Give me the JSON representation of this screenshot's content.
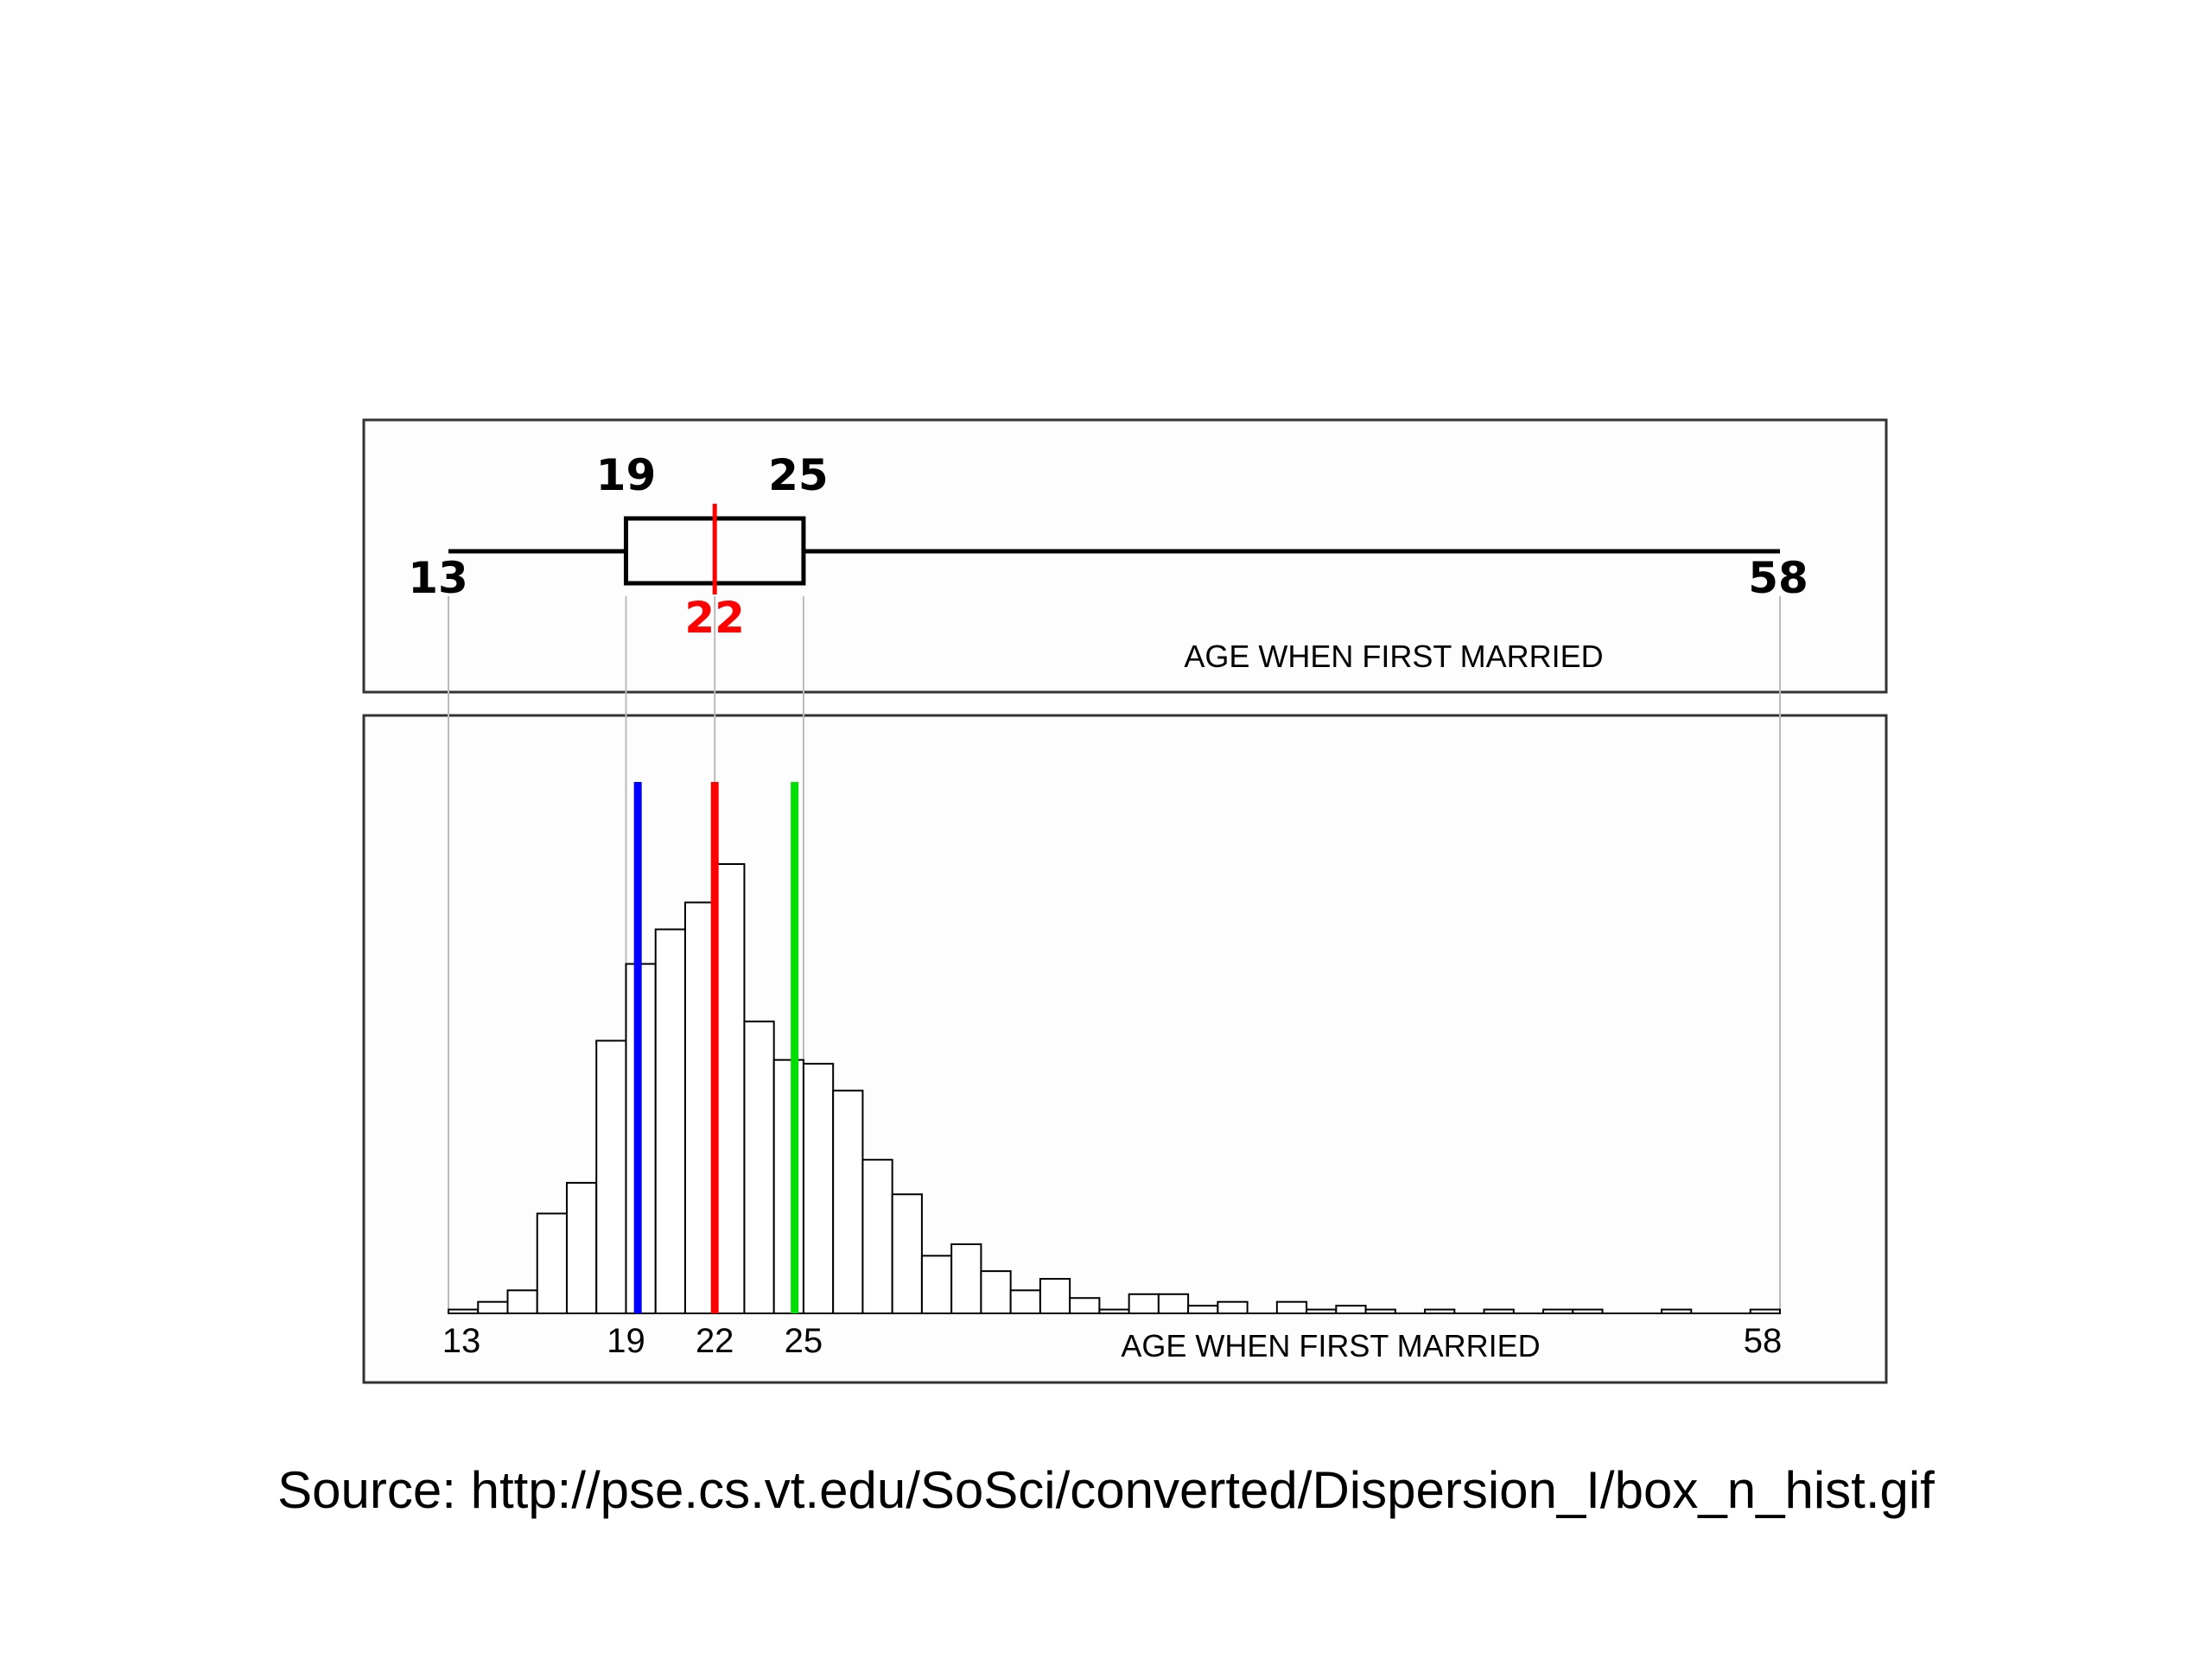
{
  "chart_data": [
    {
      "type": "box",
      "xlabel": "AGE WHEN FIRST MARRIED",
      "min": 13,
      "q1": 19,
      "median": 22,
      "q3": 25,
      "max": 58,
      "labels": {
        "min": "13",
        "q1": "19",
        "median": "22",
        "q3": "25",
        "max": "58"
      },
      "colors": {
        "median": "#ff0000",
        "box": "#000000"
      }
    },
    {
      "type": "bar",
      "xlabel": "AGE WHEN FIRST MARRIED",
      "bin_width": 1,
      "bins": [
        13,
        14,
        15,
        16,
        17,
        18,
        19,
        20,
        21,
        22,
        23,
        24,
        25,
        26,
        27,
        28,
        29,
        30,
        31,
        32,
        33,
        34,
        35,
        36,
        37,
        38,
        39,
        40,
        41,
        42,
        43,
        44,
        45,
        46,
        47,
        48,
        49,
        50,
        51,
        52,
        53,
        54,
        55,
        56,
        57
      ],
      "values": [
        1,
        3,
        6,
        26,
        34,
        71,
        91,
        100,
        107,
        117,
        76,
        66,
        65,
        58,
        40,
        31,
        15,
        18,
        11,
        6,
        9,
        4,
        1,
        5,
        5,
        2,
        3,
        0,
        3,
        1,
        2,
        1,
        0,
        1,
        0,
        1,
        0,
        1,
        1,
        0,
        0,
        1,
        0,
        0,
        1
      ],
      "ylim": [
        0,
        117
      ],
      "xticks": [
        "13",
        "19",
        "22",
        "25",
        "58"
      ],
      "xtick_values": [
        13,
        19,
        22,
        25,
        58
      ],
      "markers": [
        {
          "value": 19.4,
          "color": "#0000ff"
        },
        {
          "value": 22,
          "color": "#ff0000"
        },
        {
          "value": 24.7,
          "color": "#00dd00"
        }
      ]
    }
  ],
  "source": "Source: http://pse.cs.vt.edu/SoSci/converted/Dispersion_I/box_n_hist.gif"
}
